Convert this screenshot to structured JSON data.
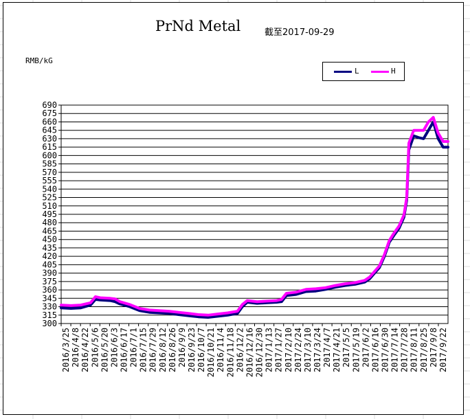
{
  "chart_data": {
    "type": "line",
    "title": "PrNd Metal",
    "subtitle": "截至2017-09-29",
    "ylabel": "RMB/kG",
    "ylim": [
      300,
      690
    ],
    "yticks": [
      300,
      315,
      330,
      345,
      360,
      375,
      390,
      405,
      420,
      435,
      450,
      465,
      480,
      495,
      510,
      525,
      540,
      555,
      570,
      585,
      600,
      615,
      630,
      645,
      660,
      675,
      690
    ],
    "xticks": [
      "2016/3/25",
      "2016/4/8",
      "2016/4/22",
      "2016/5/6",
      "2016/5/20",
      "2016/6/3",
      "2016/6/17",
      "2016/7/1",
      "2016/7/15",
      "2016/7/29",
      "2016/8/12",
      "2016/8/26",
      "2016/9/9",
      "2016/9/23",
      "2016/10/7",
      "2016/10/21",
      "2016/11/4",
      "2016/11/18",
      "2016/12/2",
      "2016/12/16",
      "2016/12/30",
      "2017/1/13",
      "2017/1/27",
      "2017/2/10",
      "2017/2/24",
      "2017/3/10",
      "2017/3/24",
      "2017/4/7",
      "2017/4/21",
      "2017/5/5",
      "2017/5/19",
      "2017/6/2",
      "2017/6/16",
      "2017/6/30",
      "2017/7/14",
      "2017/7/28",
      "2017/8/11",
      "2017/8/25",
      "2017/9/8",
      "2017/9/22"
    ],
    "legend": "top-right",
    "grid": true,
    "x": [
      "2016/3/25",
      "2016/4/8",
      "2016/4/22",
      "2016/5/6",
      "2016/5/13",
      "2016/5/20",
      "2016/6/3",
      "2016/6/10",
      "2016/6/17",
      "2016/7/1",
      "2016/7/15",
      "2016/7/29",
      "2016/8/12",
      "2016/8/26",
      "2016/9/9",
      "2016/9/23",
      "2016/10/7",
      "2016/10/21",
      "2016/11/4",
      "2016/11/18",
      "2016/12/2",
      "2016/12/9",
      "2016/12/16",
      "2016/12/30",
      "2017/1/13",
      "2017/1/27",
      "2017/2/3",
      "2017/2/10",
      "2017/2/24",
      "2017/3/10",
      "2017/3/24",
      "2017/4/7",
      "2017/4/21",
      "2017/5/5",
      "2017/5/19",
      "2017/6/2",
      "2017/6/9",
      "2017/6/16",
      "2017/6/23",
      "2017/6/30",
      "2017/7/7",
      "2017/7/14",
      "2017/7/21",
      "2017/7/28",
      "2017/8/1",
      "2017/8/4",
      "2017/8/11",
      "2017/8/18",
      "2017/8/25",
      "2017/9/1",
      "2017/9/8",
      "2017/9/15",
      "2017/9/22",
      "2017/9/29"
    ],
    "series": [
      {
        "name": "L",
        "color": "#000080",
        "values": [
          328,
          327,
          328,
          333,
          343,
          342,
          341,
          339,
          335,
          330,
          323,
          320,
          319,
          318,
          316,
          314,
          312,
          311,
          313,
          315,
          318,
          330,
          338,
          336,
          337,
          338,
          339,
          350,
          352,
          357,
          358,
          361,
          365,
          368,
          370,
          374,
          380,
          390,
          400,
          420,
          445,
          458,
          470,
          490,
          520,
          610,
          635,
          632,
          630,
          645,
          660,
          630,
          615,
          615
        ]
      },
      {
        "name": "H",
        "color": "#ff00ff",
        "values": [
          333,
          332,
          333,
          337,
          348,
          346,
          345,
          344,
          339,
          334,
          327,
          324,
          323,
          322,
          320,
          318,
          316,
          315,
          317,
          319,
          322,
          334,
          341,
          339,
          340,
          341,
          343,
          354,
          356,
          361,
          362,
          364,
          368,
          371,
          373,
          377,
          383,
          393,
          403,
          423,
          448,
          462,
          474,
          494,
          525,
          622,
          645,
          645,
          645,
          660,
          668,
          640,
          625,
          625
        ]
      }
    ]
  }
}
